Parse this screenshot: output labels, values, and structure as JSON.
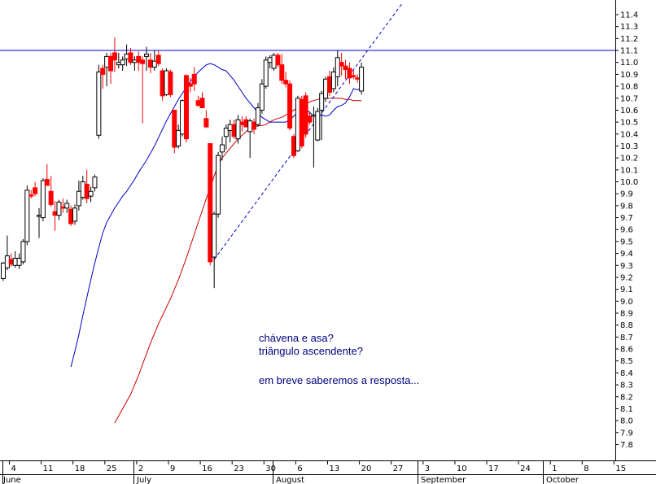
{
  "chart_data": {
    "type": "candlestick",
    "title": "",
    "ylim": [
      7.7,
      11.5
    ],
    "y_ticks": [
      "7.8",
      "7.9",
      "8.0",
      "8.1",
      "8.2",
      "8.3",
      "8.4",
      "8.5",
      "8.6",
      "8.7",
      "8.8",
      "8.9",
      "9.0",
      "9.1",
      "9.2",
      "9.3",
      "9.4",
      "9.5",
      "9.6",
      "9.7",
      "9.8",
      "9.9",
      "10.0",
      "10.1",
      "10.2",
      "10.3",
      "10.4",
      "10.5",
      "10.6",
      "10.7",
      "10.8",
      "10.9",
      "11.0",
      "11.1",
      "11.2",
      "11.3",
      "11.4"
    ],
    "x_day_ticks": [
      "4",
      "11",
      "18",
      "25",
      "2",
      "9",
      "16",
      "23",
      "30",
      "6",
      "13",
      "20",
      "27",
      "3",
      "10",
      "17",
      "24",
      "1",
      "8",
      "15"
    ],
    "x_month_labels": [
      "June",
      "July",
      "August",
      "September",
      "October"
    ],
    "grid": false,
    "colors": {
      "up": "#ffffff",
      "down": "#ff0000",
      "doji": "#000000",
      "fast_ma": "#0000cc",
      "slow_ma": "#cc0000",
      "resistance": "#0000cc",
      "trendline": "#0000cc"
    },
    "candles": [
      {
        "o": 9.19,
        "h": 9.33,
        "l": 9.17,
        "c": 9.32
      },
      {
        "o": 9.28,
        "h": 9.55,
        "l": 9.26,
        "c": 9.38
      },
      {
        "o": 9.35,
        "h": 9.4,
        "l": 9.29,
        "c": 9.31
      },
      {
        "o": 9.3,
        "h": 9.42,
        "l": 9.28,
        "c": 9.36
      },
      {
        "o": 9.3,
        "h": 9.4,
        "l": 9.27,
        "c": 9.36
      },
      {
        "o": 9.33,
        "h": 9.52,
        "l": 9.31,
        "c": 9.5
      },
      {
        "o": 9.5,
        "h": 9.97,
        "l": 9.47,
        "c": 9.93
      },
      {
        "o": 9.89,
        "h": 9.93,
        "l": 9.86,
        "c": 9.88
      },
      {
        "o": 9.95,
        "h": 10.0,
        "l": 9.88,
        "c": 9.9
      },
      {
        "o": 9.71,
        "h": 9.78,
        "l": 9.53,
        "c": 9.72
      },
      {
        "o": 9.7,
        "h": 10.03,
        "l": 9.67,
        "c": 10.01
      },
      {
        "o": 10.02,
        "h": 10.15,
        "l": 9.99,
        "c": 9.97
      },
      {
        "o": 9.92,
        "h": 10.05,
        "l": 9.79,
        "c": 9.81
      },
      {
        "o": 9.75,
        "h": 9.84,
        "l": 9.59,
        "c": 9.72
      },
      {
        "o": 9.72,
        "h": 9.85,
        "l": 9.68,
        "c": 9.83
      },
      {
        "o": 9.79,
        "h": 9.86,
        "l": 9.74,
        "c": 9.78
      },
      {
        "o": 9.78,
        "h": 9.85,
        "l": 9.74,
        "c": 9.82
      },
      {
        "o": 9.77,
        "h": 9.8,
        "l": 9.63,
        "c": 9.65
      },
      {
        "o": 9.67,
        "h": 9.81,
        "l": 9.64,
        "c": 9.78
      },
      {
        "o": 9.8,
        "h": 10.01,
        "l": 9.76,
        "c": 9.92
      },
      {
        "o": 9.87,
        "h": 10.05,
        "l": 9.85,
        "c": 10.0
      },
      {
        "o": 9.98,
        "h": 10.1,
        "l": 9.82,
        "c": 9.86
      },
      {
        "o": 9.88,
        "h": 9.96,
        "l": 9.83,
        "c": 9.92
      },
      {
        "o": 9.95,
        "h": 10.06,
        "l": 9.92,
        "c": 10.04
      },
      {
        "o": 10.39,
        "h": 10.98,
        "l": 10.36,
        "c": 10.92
      },
      {
        "o": 10.95,
        "h": 10.98,
        "l": 10.78,
        "c": 10.9
      },
      {
        "o": 10.96,
        "h": 11.08,
        "l": 10.8,
        "c": 11.05
      },
      {
        "o": 11.05,
        "h": 11.08,
        "l": 10.82,
        "c": 10.93
      },
      {
        "o": 11.08,
        "h": 11.21,
        "l": 10.92,
        "c": 11.02
      },
      {
        "o": 10.98,
        "h": 11.08,
        "l": 10.95,
        "c": 11.0
      },
      {
        "o": 10.98,
        "h": 11.05,
        "l": 10.93,
        "c": 11.02
      },
      {
        "o": 11.03,
        "h": 11.15,
        "l": 10.97,
        "c": 11.07
      },
      {
        "o": 11.08,
        "h": 11.12,
        "l": 10.98,
        "c": 11.0
      },
      {
        "o": 11.0,
        "h": 11.05,
        "l": 10.93,
        "c": 11.02
      },
      {
        "o": 11.05,
        "h": 11.09,
        "l": 10.93,
        "c": 11.0
      },
      {
        "o": 11.02,
        "h": 11.05,
        "l": 10.49,
        "c": 10.99
      },
      {
        "o": 11.05,
        "h": 11.13,
        "l": 10.93,
        "c": 11.07
      },
      {
        "o": 11.02,
        "h": 11.08,
        "l": 10.91,
        "c": 10.96
      },
      {
        "o": 10.96,
        "h": 11.1,
        "l": 10.93,
        "c": 11.01
      },
      {
        "o": 11.06,
        "h": 11.1,
        "l": 10.97,
        "c": 10.99
      },
      {
        "o": 10.93,
        "h": 10.95,
        "l": 10.68,
        "c": 10.72
      },
      {
        "o": 10.73,
        "h": 10.95,
        "l": 10.72,
        "c": 10.93
      },
      {
        "o": 10.92,
        "h": 10.94,
        "l": 10.71,
        "c": 10.73
      },
      {
        "o": 10.6,
        "h": 10.6,
        "l": 10.24,
        "c": 10.29
      },
      {
        "o": 10.3,
        "h": 10.48,
        "l": 10.28,
        "c": 10.43
      },
      {
        "o": 10.4,
        "h": 10.69,
        "l": 10.38,
        "c": 10.68
      },
      {
        "o": 10.89,
        "h": 10.9,
        "l": 10.33,
        "c": 10.36
      },
      {
        "o": 10.82,
        "h": 10.87,
        "l": 10.75,
        "c": 10.8
      },
      {
        "o": 10.9,
        "h": 10.96,
        "l": 10.76,
        "c": 10.82
      },
      {
        "o": 10.68,
        "h": 10.72,
        "l": 10.63,
        "c": 10.64
      },
      {
        "o": 10.7,
        "h": 10.75,
        "l": 10.62,
        "c": 10.62
      },
      {
        "o": 10.53,
        "h": 10.6,
        "l": 10.45,
        "c": 10.46
      },
      {
        "o": 10.32,
        "h": 10.32,
        "l": 9.3,
        "c": 9.33
      },
      {
        "o": 9.37,
        "h": 9.75,
        "l": 9.11,
        "c": 9.73
      },
      {
        "o": 9.73,
        "h": 10.25,
        "l": 9.7,
        "c": 10.22
      },
      {
        "o": 10.25,
        "h": 10.38,
        "l": 10.18,
        "c": 10.31
      },
      {
        "o": 10.38,
        "h": 10.48,
        "l": 10.27,
        "c": 10.45
      },
      {
        "o": 10.43,
        "h": 10.52,
        "l": 10.33,
        "c": 10.48
      },
      {
        "o": 10.48,
        "h": 10.52,
        "l": 10.36,
        "c": 10.38
      },
      {
        "o": 10.36,
        "h": 10.56,
        "l": 10.32,
        "c": 10.52
      },
      {
        "o": 10.5,
        "h": 10.55,
        "l": 10.42,
        "c": 10.48
      },
      {
        "o": 10.52,
        "h": 10.55,
        "l": 10.47,
        "c": 10.46
      },
      {
        "o": 10.42,
        "h": 10.53,
        "l": 10.2,
        "c": 10.51
      },
      {
        "o": 10.5,
        "h": 10.53,
        "l": 10.4,
        "c": 10.44
      },
      {
        "o": 10.48,
        "h": 10.66,
        "l": 10.46,
        "c": 10.62
      },
      {
        "o": 10.6,
        "h": 10.86,
        "l": 10.57,
        "c": 10.82
      },
      {
        "o": 10.8,
        "h": 11.05,
        "l": 10.78,
        "c": 11.02
      },
      {
        "o": 11.0,
        "h": 11.06,
        "l": 10.95,
        "c": 11.04
      },
      {
        "o": 10.95,
        "h": 11.08,
        "l": 10.93,
        "c": 11.06
      },
      {
        "o": 11.06,
        "h": 11.08,
        "l": 10.96,
        "c": 10.98
      },
      {
        "o": 10.98,
        "h": 11.07,
        "l": 10.82,
        "c": 10.85
      },
      {
        "o": 10.85,
        "h": 10.92,
        "l": 10.79,
        "c": 10.82
      },
      {
        "o": 10.82,
        "h": 10.85,
        "l": 10.43,
        "c": 10.45
      },
      {
        "o": 10.38,
        "h": 10.4,
        "l": 10.2,
        "c": 10.22
      },
      {
        "o": 10.26,
        "h": 10.72,
        "l": 10.25,
        "c": 10.7
      },
      {
        "o": 10.69,
        "h": 10.72,
        "l": 10.28,
        "c": 10.3
      },
      {
        "o": 10.72,
        "h": 10.75,
        "l": 10.37,
        "c": 10.4
      },
      {
        "o": 10.55,
        "h": 10.59,
        "l": 10.48,
        "c": 10.5
      },
      {
        "o": 10.55,
        "h": 10.63,
        "l": 10.12,
        "c": 10.56
      },
      {
        "o": 10.35,
        "h": 10.62,
        "l": 10.34,
        "c": 10.59
      },
      {
        "o": 10.6,
        "h": 10.76,
        "l": 10.35,
        "c": 10.74
      },
      {
        "o": 10.7,
        "h": 10.88,
        "l": 10.67,
        "c": 10.86
      },
      {
        "o": 10.88,
        "h": 10.93,
        "l": 10.72,
        "c": 10.75
      },
      {
        "o": 10.78,
        "h": 10.96,
        "l": 10.75,
        "c": 10.92
      },
      {
        "o": 10.88,
        "h": 11.1,
        "l": 10.8,
        "c": 11.04
      },
      {
        "o": 11.0,
        "h": 11.08,
        "l": 10.89,
        "c": 10.97
      },
      {
        "o": 10.97,
        "h": 11.02,
        "l": 10.86,
        "c": 10.94
      },
      {
        "o": 10.95,
        "h": 11.0,
        "l": 10.82,
        "c": 10.87
      },
      {
        "o": 10.89,
        "h": 10.94,
        "l": 10.86,
        "c": 10.88
      },
      {
        "o": 10.87,
        "h": 10.9,
        "l": 10.83,
        "c": 10.86
      },
      {
        "o": 10.76,
        "h": 11.0,
        "l": 10.73,
        "c": 10.96
      }
    ],
    "fast_ma": [
      8.45,
      8.58,
      8.72,
      8.88,
      9.03,
      9.18,
      9.32,
      9.45,
      9.57,
      9.66,
      9.72,
      9.78,
      9.83,
      9.88,
      9.92,
      9.97,
      10.02,
      10.08,
      10.13,
      10.18,
      10.24,
      10.3,
      10.37,
      10.44,
      10.51,
      10.57,
      10.63,
      10.69,
      10.74,
      10.79,
      10.84,
      10.88,
      10.92,
      10.95,
      10.98,
      10.99,
      10.98,
      10.96,
      10.94,
      10.93,
      10.89,
      10.85,
      10.8,
      10.75,
      10.7,
      10.66,
      10.62,
      10.58,
      10.54,
      10.52,
      10.5,
      10.5,
      10.5,
      10.5,
      10.5,
      10.52,
      10.55,
      10.58,
      10.6,
      10.61,
      10.58,
      10.55,
      10.55,
      10.56,
      10.55,
      10.56,
      10.6,
      10.63,
      10.64,
      10.66,
      10.71,
      10.78,
      10.77,
      10.79
    ],
    "slow_ma": [
      7.98,
      8.04,
      8.1,
      8.16,
      8.22,
      8.3,
      8.38,
      8.47,
      8.56,
      8.65,
      8.73,
      8.81,
      8.88,
      8.95,
      9.02,
      9.1,
      9.18,
      9.27,
      9.36,
      9.46,
      9.56,
      9.66,
      9.76,
      9.86,
      9.95,
      10.05,
      10.14,
      10.2,
      10.24,
      10.28,
      10.32,
      10.36,
      10.39,
      10.42,
      10.45,
      10.46,
      10.47,
      10.47,
      10.48,
      10.5,
      10.52,
      10.53,
      10.54,
      10.56,
      10.58,
      10.6,
      10.62,
      10.64,
      10.65,
      10.67,
      10.68,
      10.69,
      10.7,
      10.7,
      10.7,
      10.7,
      10.7,
      10.7,
      10.69,
      10.69,
      10.68,
      10.68,
      10.68
    ],
    "resistance_level": 11.1,
    "trendline": {
      "from": {
        "candle": 53,
        "value": 9.35
      },
      "to": {
        "candle": 90,
        "value": 11.03
      }
    }
  },
  "annotations": {
    "line1": "chávena e asa?",
    "line2": "triângulo ascendente?",
    "line3": "em breve saberemos a resposta..."
  }
}
